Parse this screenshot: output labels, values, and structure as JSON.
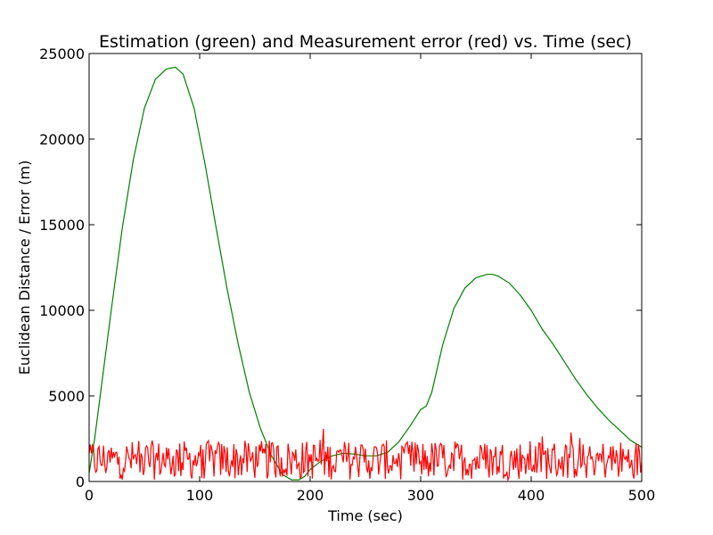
{
  "chart_data": {
    "type": "line",
    "title": "Estimation (green) and Measurement error (red) vs. Time (sec)",
    "xlabel": "Time (sec)",
    "ylabel": "Euclidean Distance / Error (m)",
    "xlim": [
      0,
      500
    ],
    "ylim": [
      0,
      25000
    ],
    "xticks": [
      "0",
      "100",
      "200",
      "300",
      "400",
      "500"
    ],
    "yticks": [
      "0",
      "5000",
      "10000",
      "15000",
      "20000",
      "25000"
    ],
    "grid": false,
    "legend": "none",
    "series": [
      {
        "color": "#008000",
        "x": [
          0,
          5,
          10,
          20,
          30,
          40,
          50,
          60,
          70,
          78,
          85,
          95,
          105,
          115,
          125,
          135,
          145,
          155,
          165,
          175,
          183,
          190,
          195,
          200,
          210,
          220,
          230,
          240,
          250,
          260,
          270,
          280,
          290,
          300,
          305,
          310,
          320,
          330,
          340,
          350,
          360,
          365,
          370,
          380,
          390,
          400,
          410,
          420,
          430,
          440,
          450,
          460,
          470,
          480,
          490,
          500
        ],
        "y": [
          500,
          2500,
          5000,
          10000,
          14800,
          18800,
          21800,
          23500,
          24100,
          24200,
          23800,
          21800,
          18500,
          14800,
          11200,
          8000,
          5200,
          3100,
          1500,
          400,
          100,
          100,
          300,
          700,
          1200,
          1500,
          1650,
          1600,
          1500,
          1500,
          1700,
          2300,
          3200,
          4200,
          4400,
          5200,
          8000,
          10100,
          11300,
          11900,
          12100,
          12100,
          12000,
          11600,
          10900,
          10000,
          8900,
          8000,
          7000,
          6000,
          5100,
          4300,
          3600,
          3000,
          2400,
          2000
        ]
      },
      {
        "color": "#ff0000",
        "x": [],
        "y": []
      }
    ]
  }
}
